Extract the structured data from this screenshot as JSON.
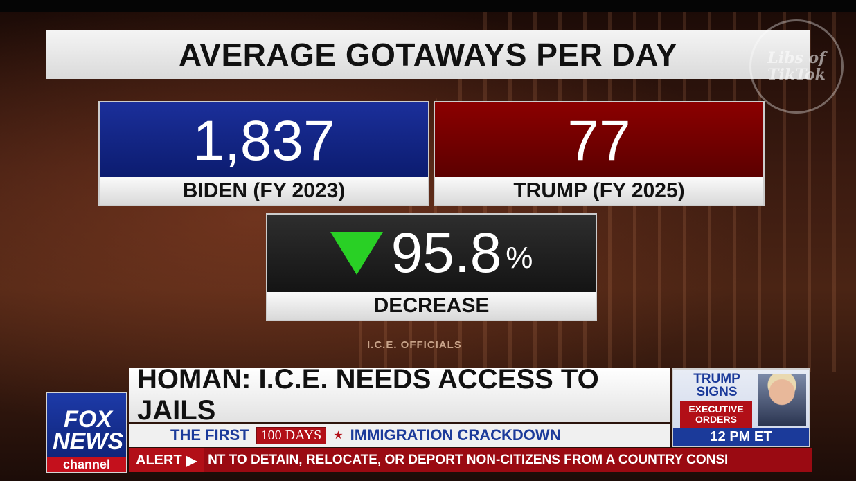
{
  "graphic": {
    "title": "AVERAGE GOTAWAYS PER DAY",
    "biden": {
      "value": "1,837",
      "label": "BIDEN (FY 2023)"
    },
    "trump": {
      "value": "77",
      "label": "TRUMP (FY 2025)"
    },
    "change": {
      "value": "95.8",
      "unit": "%",
      "label": "DECREASE",
      "direction": "down",
      "icon": "down-triangle-icon"
    },
    "source": "I.C.E. OFFICIALS"
  },
  "watermark": {
    "line1": "Libs of",
    "line2": "TikTok"
  },
  "network": {
    "logo_line1": "FOX",
    "logo_line2": "NEWS",
    "logo_line3": "channel"
  },
  "chyron": {
    "headline": "HOMAN: I.C.E. NEEDS ACCESS TO JAILS",
    "sub_prefix": "THE FIRST",
    "sub_badge": "100 DAYS",
    "sub_suffix": "IMMIGRATION CRACKDOWN"
  },
  "promo": {
    "line1": "TRUMP",
    "line2": "SIGNS",
    "badge1": "EXECUTIVE",
    "badge2": "ORDERS",
    "time": "12 PM ET"
  },
  "ticker": {
    "alert_label": "ALERT",
    "text": "NT TO DETAIN, RELOCATE, OR DEPORT NON-CITIZENS FROM A COUNTRY CONSI"
  },
  "colors": {
    "blue": "#1b2f9a",
    "red": "#8b0000",
    "green": "#29d025",
    "fox_red": "#b20f17"
  }
}
